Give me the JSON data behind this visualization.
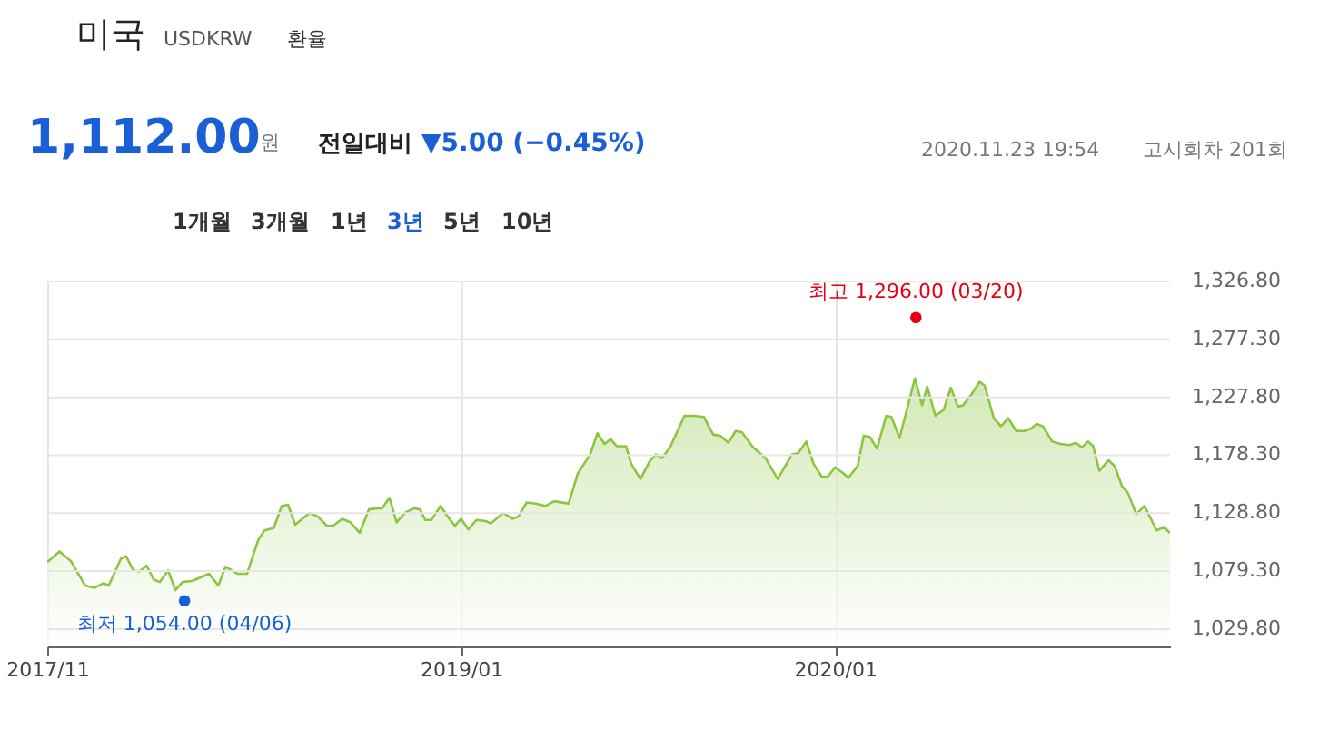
{
  "chart_data": {
    "type": "area",
    "title": "미국",
    "subtitle": "USDKRW",
    "annotations": [
      "환율",
      "1,112.00",
      "원",
      "전일대비",
      "▼5.00 (−0.45%)",
      "2020.11.23 19:54",
      "고시회차 201회",
      "1개월",
      "3개월",
      "1년",
      "3년",
      "5년",
      "10년",
      {
        "text": "최고 1,296.00 (03/20)",
        "x": "2020-03-20",
        "y": 1296
      },
      {
        "text": "최저 1,054.00 (04/06)",
        "x": "2018-04-06",
        "y": 1054
      }
    ],
    "x": [
      "2017-11-23",
      "2017-12-05",
      "2017-12-16",
      "2017-12-30",
      "2018-01-08",
      "2018-01-17",
      "2018-01-22",
      "2018-02-03",
      "2018-02-08",
      "2018-02-15",
      "2018-02-21",
      "2018-02-28",
      "2018-03-07",
      "2018-03-13",
      "2018-03-21",
      "2018-03-28",
      "2018-04-04",
      "2018-04-14",
      "2018-04-30",
      "2018-05-09",
      "2018-05-16",
      "2018-05-28",
      "2018-06-06",
      "2018-06-17",
      "2018-06-23",
      "2018-07-02",
      "2018-07-10",
      "2018-07-16",
      "2018-07-23",
      "2018-08-06",
      "2018-08-14",
      "2018-08-23",
      "2018-08-29",
      "2018-09-07",
      "2018-09-15",
      "2018-09-24",
      "2018-10-03",
      "2018-10-12",
      "2018-10-16",
      "2018-10-23",
      "2018-10-30",
      "2018-11-07",
      "2018-11-16",
      "2018-11-22",
      "2018-11-27",
      "2018-12-03",
      "2018-12-12",
      "2018-12-18",
      "2018-12-26",
      "2019-01-01",
      "2019-01-08",
      "2019-01-16",
      "2019-01-25",
      "2019-01-30",
      "2019-02-11",
      "2019-02-20",
      "2019-02-26",
      "2019-03-06",
      "2019-03-15",
      "2019-03-24",
      "2019-04-02",
      "2019-04-16",
      "2019-04-25",
      "2019-05-07",
      "2019-05-14",
      "2019-05-21",
      "2019-05-27",
      "2019-06-02",
      "2019-06-11",
      "2019-06-16",
      "2019-06-25",
      "2019-07-04",
      "2019-07-10",
      "2019-07-16",
      "2019-07-24",
      "2019-08-07",
      "2019-08-16",
      "2019-08-26",
      "2019-09-04",
      "2019-09-11",
      "2019-09-19",
      "2019-09-26",
      "2019-10-02",
      "2019-10-13",
      "2019-10-25",
      "2019-11-06",
      "2019-11-20",
      "2019-11-26",
      "2019-12-04",
      "2019-12-11",
      "2019-12-19",
      "2019-12-25",
      "2020-01-01",
      "2020-01-09",
      "2020-01-14",
      "2020-01-23",
      "2020-01-29",
      "2020-02-04",
      "2020-02-11",
      "2020-02-20",
      "2020-02-25",
      "2020-03-04",
      "2020-03-19",
      "2020-03-26",
      "2020-03-31",
      "2020-04-08",
      "2020-04-16",
      "2020-04-23",
      "2020-04-30",
      "2020-05-05",
      "2020-05-13",
      "2020-05-21",
      "2020-05-26",
      "2020-06-04",
      "2020-06-11",
      "2020-06-18",
      "2020-06-26",
      "2020-07-04",
      "2020-07-10",
      "2020-07-16",
      "2020-07-22",
      "2020-07-31",
      "2020-08-08",
      "2020-08-17",
      "2020-08-23",
      "2020-08-29",
      "2020-09-04",
      "2020-09-09",
      "2020-09-15",
      "2020-09-24",
      "2020-09-30",
      "2020-10-07",
      "2020-10-13",
      "2020-10-21",
      "2020-10-29",
      "2020-11-10",
      "2020-11-17",
      "2020-11-23"
    ],
    "series": [
      {
        "type": "scatter",
        "x": [
          "2018-04-06",
          "2020-03-20"
        ],
        "colors": [
          "#1a5fd6",
          "#e60012"
        ],
        "values": [
          1054,
          1296
        ]
      },
      {
        "color": "#8cc63f",
        "values": [
          1087,
          1096,
          1088,
          1067,
          1065,
          1069,
          1067,
          1090,
          1092,
          1080,
          1079,
          1084,
          1072,
          1070,
          1080,
          1063,
          1070,
          1071,
          1077,
          1067,
          1083,
          1077,
          1077,
          1106,
          1114,
          1116,
          1135,
          1136,
          1119,
          1129,
          1126,
          1118,
          1118,
          1124,
          1121,
          1112,
          1132,
          1133,
          1133,
          1142,
          1121,
          1129,
          1133,
          1132,
          1123,
          1123,
          1135,
          1127,
          1118,
          1124,
          1115,
          1123,
          1122,
          1120,
          1129,
          1124,
          1126,
          1138,
          1137,
          1135,
          1139,
          1137,
          1163,
          1179,
          1197,
          1188,
          1192,
          1186,
          1186,
          1171,
          1158,
          1173,
          1179,
          1176,
          1185,
          1212,
          1212,
          1211,
          1196,
          1195,
          1189,
          1199,
          1198,
          1185,
          1176,
          1158,
          1179,
          1180,
          1190,
          1171,
          1160,
          1160,
          1168,
          1163,
          1159,
          1169,
          1195,
          1194,
          1184,
          1212,
          1211,
          1193,
          1244,
          1221,
          1237,
          1212,
          1217,
          1236,
          1220,
          1221,
          1230,
          1241,
          1238,
          1210,
          1203,
          1210,
          1199,
          1199,
          1201,
          1205,
          1203,
          1190,
          1188,
          1187,
          1189,
          1185,
          1190,
          1186,
          1165,
          1174,
          1169,
          1152,
          1146,
          1128,
          1135,
          1114,
          1117,
          1112
        ]
      }
    ],
    "xlim": [
      "2017-11-23",
      "2020-11-23"
    ],
    "xticks": [
      {
        "value": "2017-11-23",
        "label": "2017/11"
      },
      {
        "value": "2019-01-01",
        "label": "2019/01"
      },
      {
        "value": "2020-01-01",
        "label": "2020/01"
      }
    ],
    "ylim": [
      1015,
      1326.8
    ],
    "yticks": [
      {
        "value": 1029.8,
        "label": "1,029.80"
      },
      {
        "value": 1079.3,
        "label": "1,079.30"
      },
      {
        "value": 1128.8,
        "label": "1,128.80"
      },
      {
        "value": 1178.3,
        "label": "1,178.30"
      },
      {
        "value": 1227.8,
        "label": "1,227.80"
      },
      {
        "value": 1277.3,
        "label": "1,277.30"
      },
      {
        "value": 1326.8,
        "label": "1,326.80"
      }
    ],
    "grid": true
  }
}
